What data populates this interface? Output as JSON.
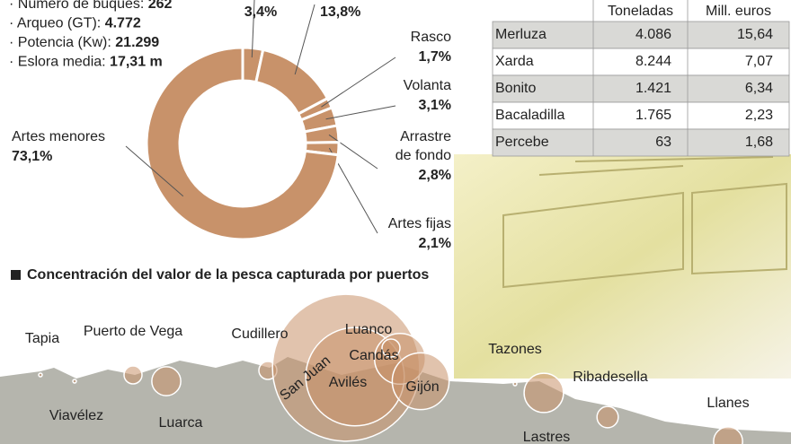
{
  "fleet": [
    {
      "label": "· Número de buques: ",
      "value": "262"
    },
    {
      "label": "· Arqueo (GT): ",
      "value": "4.772"
    },
    {
      "label": "· Potencia (Kw): ",
      "value": "21.299"
    },
    {
      "label": "· Eslora media: ",
      "value": "17,31 m"
    }
  ],
  "table": {
    "header": [
      "Toneladas",
      "Mill. euros"
    ],
    "rows": [
      [
        "Merluza",
        "4.086",
        "15,64"
      ],
      [
        "Xarda",
        "8.244",
        "7,07"
      ],
      [
        "Bonito",
        "1.421",
        "6,34"
      ],
      [
        "Bacaladilla",
        "1.765",
        "2,23"
      ],
      [
        "Percebe",
        "63",
        "1,68"
      ]
    ]
  },
  "chart_data": [
    {
      "type": "pie",
      "categories": [
        null,
        null,
        "Rasco",
        "Volanta",
        "Arrastre de fondo",
        "Artes fijas",
        "Artes menores"
      ],
      "values": [
        3.4,
        13.8,
        1.7,
        3.1,
        2.8,
        2.1,
        73.1
      ],
      "value_labels": [
        "3,4%",
        "13,8%",
        "1,7%",
        "3,1%",
        "2,8%",
        "2,1%",
        "73,1%"
      ],
      "color": "#c8926a"
    },
    {
      "type": "bubble",
      "title": "Concentración del valor de la pesca capturada por puertos",
      "categories": [
        "Tapia",
        "Viavélez",
        "Puerto de Vega",
        "Luarca",
        "Cudillero",
        "San Juan",
        "Avilés",
        "Luanco",
        "Candás",
        "Gijón",
        "Tazones",
        "Lastres",
        "Ribadesella",
        "Llanes"
      ],
      "values": [
        0.04,
        0.04,
        1,
        2.6,
        1,
        67,
        30,
        8,
        1,
        10,
        0.04,
        4.8,
        1.4,
        2.6
      ],
      "color": "#c8926a"
    }
  ]
}
